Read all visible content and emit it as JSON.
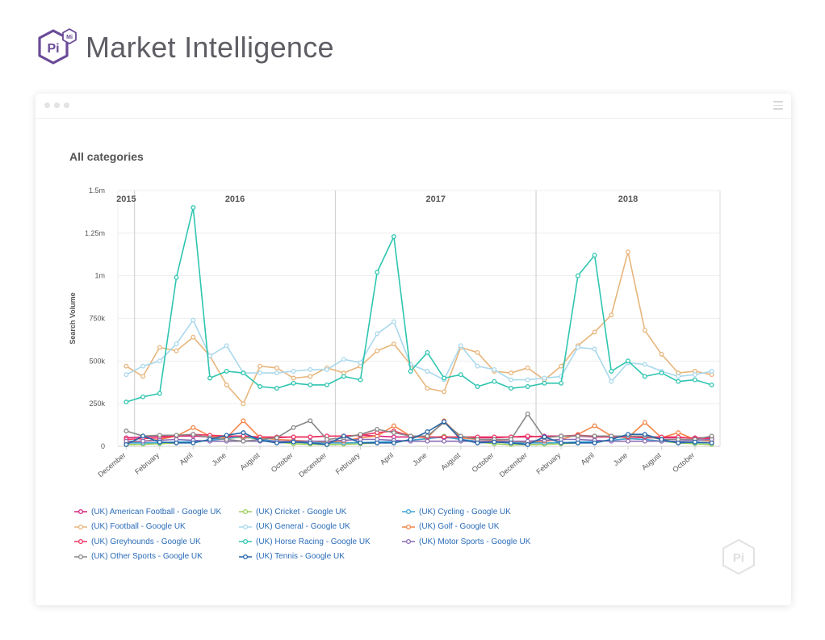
{
  "brand": {
    "logo_text": "Pi",
    "logo_badge": "Mi",
    "title": "Market Intelligence"
  },
  "window": {
    "menu_icon": "hamburger-icon"
  },
  "chart_data": {
    "type": "line",
    "title": "All categories",
    "ylabel": "Search Volume",
    "xlabel": "",
    "ylim": [
      0,
      1500000
    ],
    "yticks": [
      0,
      250000,
      500000,
      750000,
      1000000,
      1250000,
      1500000
    ],
    "ytick_labels": [
      "0",
      "250k",
      "500k",
      "750k",
      "1m",
      "1.25m",
      "1.5m"
    ],
    "grid": true,
    "legend_position": "bottom",
    "year_labels": [
      "2015",
      "2016",
      "2017",
      "2018"
    ],
    "year_label_x": [
      0.5,
      7,
      19,
      30.5
    ],
    "year_dividers": [
      1,
      13,
      25
    ],
    "x": [
      "December",
      "January",
      "February",
      "March",
      "April",
      "May",
      "June",
      "July",
      "August",
      "September",
      "October",
      "November",
      "December",
      "January",
      "February",
      "March",
      "April",
      "May",
      "June",
      "July",
      "August",
      "September",
      "October",
      "November",
      "December",
      "January",
      "February",
      "March",
      "April",
      "May",
      "June",
      "July",
      "August",
      "September",
      "October",
      "November"
    ],
    "xtick_labels": [
      "December",
      "February",
      "April",
      "June",
      "August",
      "October",
      "December",
      "February",
      "April",
      "June",
      "August",
      "October",
      "December",
      "February",
      "April",
      "June",
      "August",
      "October"
    ],
    "xtick_index": [
      0,
      2,
      4,
      6,
      8,
      10,
      12,
      14,
      16,
      18,
      20,
      22,
      24,
      26,
      28,
      30,
      32,
      34
    ],
    "series": [
      {
        "name": "(UK) American Football - Google UK",
        "color": "#d6257c",
        "values": [
          50000,
          55000,
          60000,
          60000,
          60000,
          55000,
          55000,
          50000,
          50000,
          50000,
          55000,
          55000,
          60000,
          60000,
          65000,
          60000,
          55000,
          55000,
          55000,
          50000,
          50000,
          50000,
          50000,
          55000,
          55000,
          60000,
          60000,
          60000,
          55000,
          55000,
          55000,
          50000,
          50000,
          50000,
          50000,
          50000
        ]
      },
      {
        "name": "(UK) Cricket - Google UK",
        "color": "#9ccf5a",
        "values": [
          10000,
          12000,
          15000,
          20000,
          25000,
          35000,
          45000,
          55000,
          40000,
          25000,
          15000,
          12000,
          10000,
          12000,
          15000,
          20000,
          25000,
          35000,
          45000,
          60000,
          40000,
          25000,
          15000,
          10000,
          10000,
          12000,
          15000,
          20000,
          25000,
          35000,
          45000,
          40000,
          30000,
          20000,
          15000,
          10000
        ]
      },
      {
        "name": "(UK) Cycling - Google UK",
        "color": "#3aa3d6",
        "values": [
          20000,
          20000,
          22000,
          25000,
          28000,
          35000,
          45000,
          60000,
          40000,
          30000,
          25000,
          20000,
          20000,
          20000,
          22000,
          25000,
          28000,
          35000,
          45000,
          55000,
          40000,
          30000,
          25000,
          20000,
          20000,
          20000,
          22000,
          25000,
          28000,
          35000,
          45000,
          40000,
          30000,
          25000,
          22000,
          20000
        ]
      },
      {
        "name": "(UK) Football - Google UK",
        "color": "#e7b57c",
        "values": [
          470000,
          410000,
          580000,
          560000,
          640000,
          530000,
          360000,
          250000,
          470000,
          460000,
          400000,
          410000,
          460000,
          430000,
          470000,
          560000,
          600000,
          480000,
          340000,
          320000,
          580000,
          550000,
          440000,
          430000,
          460000,
          390000,
          470000,
          590000,
          670000,
          770000,
          1140000,
          680000,
          540000,
          430000,
          440000,
          420000
        ]
      },
      {
        "name": "(UK) General - Google UK",
        "color": "#a9d8ec",
        "values": [
          420000,
          470000,
          500000,
          600000,
          740000,
          530000,
          590000,
          430000,
          430000,
          430000,
          440000,
          450000,
          450000,
          510000,
          490000,
          660000,
          730000,
          480000,
          440000,
          390000,
          590000,
          470000,
          450000,
          390000,
          390000,
          400000,
          410000,
          580000,
          570000,
          380000,
          490000,
          480000,
          440000,
          410000,
          420000,
          440000
        ]
      },
      {
        "name": "(UK) Golf - Google UK",
        "color": "#f38649",
        "values": [
          25000,
          30000,
          40000,
          60000,
          110000,
          60000,
          50000,
          150000,
          50000,
          40000,
          35000,
          30000,
          25000,
          30000,
          50000,
          60000,
          120000,
          60000,
          50000,
          150000,
          50000,
          40000,
          35000,
          30000,
          25000,
          30000,
          40000,
          70000,
          120000,
          60000,
          50000,
          140000,
          50000,
          80000,
          40000,
          30000
        ]
      },
      {
        "name": "(UK) Greyhounds - Google UK",
        "color": "#ee3560",
        "values": [
          40000,
          45000,
          50000,
          60000,
          70000,
          65000,
          60000,
          60000,
          55000,
          55000,
          55000,
          55000,
          60000,
          60000,
          65000,
          80000,
          90000,
          60000,
          55000,
          55000,
          55000,
          55000,
          55000,
          55000,
          60000,
          55000,
          60000,
          65000,
          60000,
          55000,
          55000,
          55000,
          55000,
          55000,
          45000,
          45000
        ]
      },
      {
        "name": "(UK) Horse Racing - Google UK",
        "color": "#2fc5b0",
        "values": [
          260000,
          290000,
          310000,
          990000,
          1400000,
          400000,
          440000,
          430000,
          350000,
          340000,
          370000,
          360000,
          360000,
          410000,
          390000,
          1020000,
          1230000,
          440000,
          550000,
          400000,
          420000,
          350000,
          380000,
          340000,
          350000,
          370000,
          370000,
          1000000,
          1120000,
          440000,
          500000,
          410000,
          430000,
          380000,
          390000,
          360000
        ]
      },
      {
        "name": "(UK) Motor Sports - Google UK",
        "color": "#8b6bb3",
        "values": [
          30000,
          30000,
          35000,
          40000,
          35000,
          30000,
          30000,
          30000,
          30000,
          30000,
          30000,
          30000,
          30000,
          35000,
          40000,
          40000,
          35000,
          30000,
          30000,
          30000,
          30000,
          30000,
          30000,
          30000,
          30000,
          35000,
          40000,
          40000,
          35000,
          30000,
          30000,
          30000,
          30000,
          30000,
          35000,
          40000
        ]
      },
      {
        "name": "(UK) Other Sports - Google UK",
        "color": "#888888",
        "values": [
          90000,
          60000,
          65000,
          65000,
          70000,
          50000,
          40000,
          30000,
          40000,
          50000,
          110000,
          150000,
          40000,
          50000,
          70000,
          100000,
          80000,
          60000,
          60000,
          140000,
          60000,
          40000,
          40000,
          40000,
          190000,
          50000,
          60000,
          60000,
          60000,
          60000,
          60000,
          60000,
          40000,
          40000,
          40000,
          60000
        ]
      },
      {
        "name": "(UK) Tennis - Google UK",
        "color": "#2566a8",
        "values": [
          10000,
          60000,
          25000,
          20000,
          20000,
          40000,
          65000,
          80000,
          35000,
          20000,
          25000,
          20000,
          10000,
          60000,
          20000,
          20000,
          20000,
          40000,
          85000,
          145000,
          40000,
          20000,
          25000,
          20000,
          10000,
          55000,
          20000,
          20000,
          20000,
          40000,
          70000,
          70000,
          40000,
          20000,
          25000,
          20000
        ]
      }
    ]
  }
}
